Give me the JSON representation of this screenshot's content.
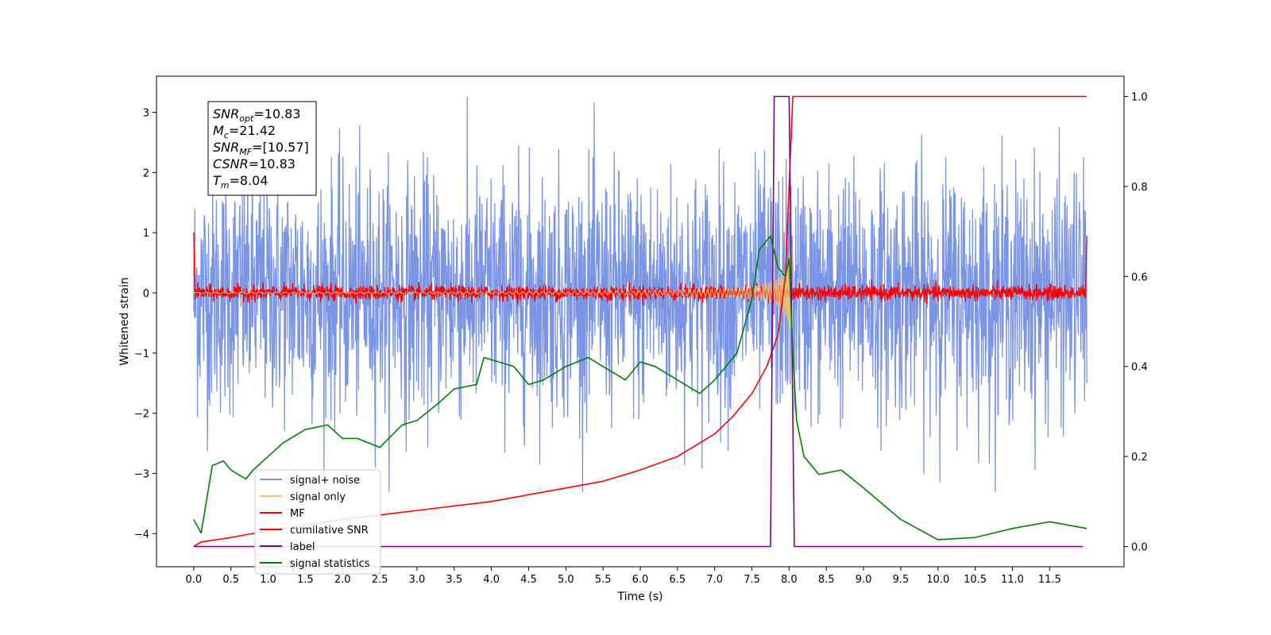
{
  "chart_data": {
    "type": "line",
    "title": "",
    "xlabel": "Time (s)",
    "ylabel": "Whitened strain",
    "y2label": "",
    "xlim": [
      -0.5,
      12.5
    ],
    "ylim": [
      -4.55,
      3.6
    ],
    "y2lim": [
      -0.045,
      1.045
    ],
    "x_ticks": [
      0.0,
      0.5,
      1.0,
      1.5,
      2.0,
      2.5,
      3.0,
      3.5,
      4.0,
      4.5,
      5.0,
      5.5,
      6.0,
      6.5,
      7.0,
      7.5,
      8.0,
      8.5,
      9.0,
      9.5,
      10.0,
      10.5,
      11.0,
      11.5
    ],
    "x_tick_labels": [
      "0.0",
      "0.5",
      "1.0",
      "1.5",
      "2.0",
      "2.5",
      "3.0",
      "3.5",
      "4.0",
      "4.5",
      "5.0",
      "5.5",
      "6.0",
      "6.5",
      "7.0",
      "7.5",
      "8.0",
      "8.5",
      "9.0",
      "9.5",
      "10.0",
      "10.5",
      "11.0",
      "11.5"
    ],
    "y_ticks": [
      3,
      2,
      1,
      0,
      -1,
      -2,
      -3,
      -4
    ],
    "y_tick_labels": [
      "3",
      "2",
      "1",
      "0",
      "−1",
      "−2",
      "−3",
      "−4"
    ],
    "y2_ticks": [
      1.0,
      0.8,
      0.6,
      0.4,
      0.2,
      0.0
    ],
    "y2_tick_labels": [
      "1.0",
      "0.8",
      "0.6",
      "0.4",
      "0.2",
      "0.0"
    ],
    "grid": false,
    "legend_position": "lower-left",
    "annotation": {
      "lines": [
        {
          "sym": "SNR",
          "sub": "opt",
          "val": "=10.83"
        },
        {
          "sym": "M",
          "sub": "c",
          "val": "=21.42"
        },
        {
          "sym": "SNR",
          "sub": "MF",
          "val": "=[10.57]"
        },
        {
          "sym": "CSNR",
          "sub": "",
          "val": "=10.83"
        },
        {
          "sym": "T",
          "sub": "m",
          "val": "=8.04"
        }
      ]
    },
    "series": [
      {
        "name": "signal+ noise",
        "color": "#7a94e6",
        "axis": "left",
        "kind": "noise",
        "x_range": [
          0.0,
          12.0
        ],
        "sigma": 1.0,
        "approx_range": [
          -3.3,
          3.25
        ]
      },
      {
        "name": "signal only",
        "color": "#f5c26b",
        "axis": "left",
        "kind": "chirp",
        "x_range": [
          0.0,
          8.04
        ],
        "merger_time": 8.04,
        "peak_amplitude": 0.95
      },
      {
        "name": "MF",
        "color": "#ff0000",
        "axis": "left",
        "kind": "noise",
        "x_range": [
          0.0,
          12.0
        ],
        "sigma": 0.06,
        "edge_values": [
          1.0,
          0.95
        ]
      },
      {
        "name": "cumilative SNR",
        "color": "#ff0000",
        "axis": "right",
        "kind": "curve",
        "x": [
          0.0,
          0.1,
          0.5,
          1.0,
          2.0,
          3.0,
          4.0,
          5.0,
          5.5,
          6.0,
          6.5,
          7.0,
          7.25,
          7.5,
          7.7,
          7.85,
          7.95,
          8.0,
          8.05,
          8.1,
          12.0
        ],
        "y": [
          0.0,
          0.01,
          0.02,
          0.035,
          0.06,
          0.08,
          0.1,
          0.13,
          0.145,
          0.17,
          0.2,
          0.25,
          0.29,
          0.34,
          0.4,
          0.47,
          0.6,
          0.8,
          1.0,
          1.0,
          1.0
        ]
      },
      {
        "name": "label",
        "color": "#800080",
        "axis": "right",
        "kind": "curve",
        "x": [
          0.0,
          7.75,
          7.8,
          8.0,
          8.07,
          11.95
        ],
        "y": [
          0.0,
          0.0,
          1.0,
          1.0,
          0.0,
          0.0
        ]
      },
      {
        "name": "signal statistics",
        "color": "#008000",
        "axis": "right",
        "kind": "curve",
        "x": [
          0.0,
          0.1,
          0.25,
          0.4,
          0.5,
          0.6,
          0.7,
          0.8,
          1.0,
          1.2,
          1.5,
          1.8,
          2.0,
          2.2,
          2.5,
          2.8,
          3.0,
          3.3,
          3.5,
          3.8,
          3.9,
          4.1,
          4.3,
          4.5,
          4.7,
          5.0,
          5.3,
          5.6,
          5.8,
          6.0,
          6.2,
          6.5,
          6.8,
          7.0,
          7.3,
          7.5,
          7.6,
          7.75,
          7.85,
          7.95,
          8.0,
          8.05,
          8.1,
          8.2,
          8.4,
          8.7,
          9.0,
          9.5,
          10.0,
          10.5,
          11.0,
          11.5,
          12.0
        ],
        "y": [
          0.06,
          0.03,
          0.18,
          0.19,
          0.17,
          0.16,
          0.15,
          0.17,
          0.2,
          0.23,
          0.26,
          0.27,
          0.24,
          0.24,
          0.22,
          0.27,
          0.28,
          0.32,
          0.35,
          0.36,
          0.42,
          0.41,
          0.4,
          0.36,
          0.37,
          0.4,
          0.42,
          0.39,
          0.37,
          0.41,
          0.4,
          0.37,
          0.34,
          0.37,
          0.43,
          0.55,
          0.66,
          0.69,
          0.62,
          0.6,
          0.64,
          0.43,
          0.28,
          0.2,
          0.16,
          0.17,
          0.13,
          0.06,
          0.015,
          0.02,
          0.04,
          0.055,
          0.04
        ]
      }
    ]
  }
}
